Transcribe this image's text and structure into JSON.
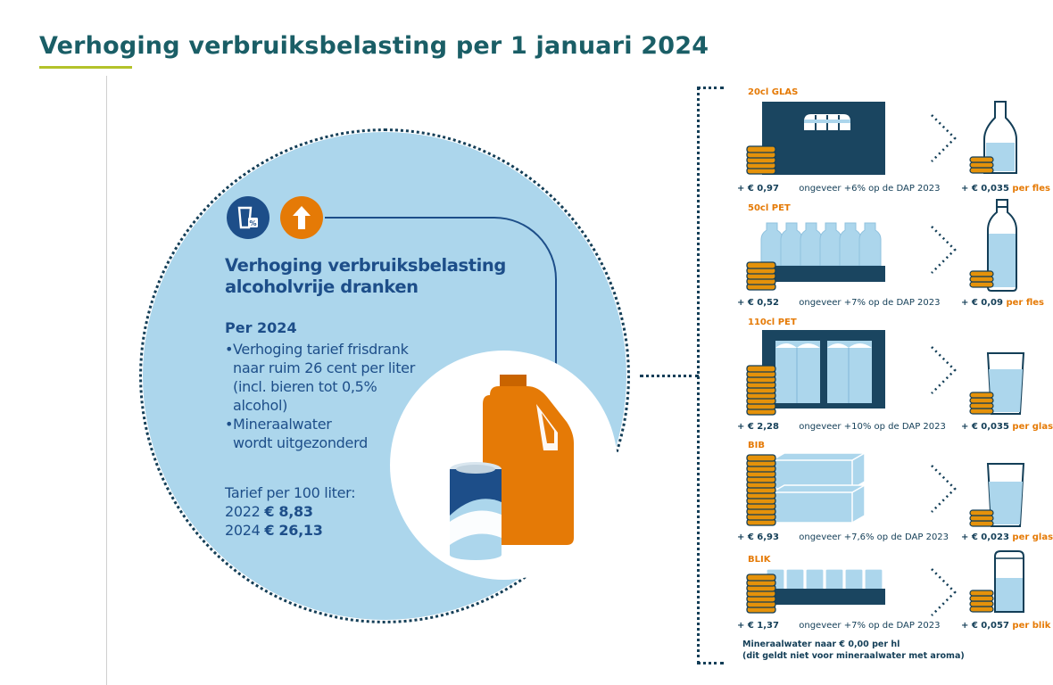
{
  "page": {
    "title": "Verhoging verbruiksbelasting per 1 januari 2024"
  },
  "colors": {
    "brand_teal": "#1a5e66",
    "accent_green": "#b3c22a",
    "navy": "#133e57",
    "blue": "#1d4e89",
    "orange": "#e57a06",
    "light_blue": "#acd6ec"
  },
  "circle": {
    "icons": [
      "glass-percent-icon",
      "arrow-up-icon"
    ],
    "heading_line1": "Verhoging verbruiksbelasting",
    "heading_line2": "alcoholvrije dranken",
    "per_label": "Per 2024",
    "bullets": [
      [
        "Verhoging tarief frisdrank",
        "naar ruim 26 cent per liter",
        "(incl. bieren tot 0,5%",
        "alcohol)"
      ],
      [
        "Mineraalwater",
        "wordt uitgezonderd"
      ]
    ],
    "tarief_label": "Tarief per 100 liter:",
    "tarief_2022_year": "2022",
    "tarief_2022_value": "€ 8,83",
    "tarief_2024_year": "2024",
    "tarief_2024_value": "€ 26,13"
  },
  "categories": [
    {
      "label": "20cl GLAS",
      "amount": "+ € 0,97",
      "note": "ongeveer +6% op de DAP 2023",
      "unit_amount": "+ € 0,035",
      "unit": "per fles"
    },
    {
      "label": "50cl PET",
      "amount": "+ € 0,52",
      "note": "ongeveer +7% op de DAP 2023",
      "unit_amount": "+ € 0,09",
      "unit": "per fles"
    },
    {
      "label": "110cl PET",
      "amount": "+ € 2,28",
      "note": "ongeveer +10% op de DAP 2023",
      "unit_amount": "+ € 0,035",
      "unit": "per glas"
    },
    {
      "label": "BIB",
      "amount": "+ € 6,93",
      "note": "ongeveer +7,6% op de DAP 2023",
      "unit_amount": "+ € 0,023",
      "unit": "per glas"
    },
    {
      "label": "BLIK",
      "amount": "+ € 1,37",
      "note": "ongeveer +7% op de DAP 2023",
      "unit_amount": "+ € 0,057",
      "unit": "per blik"
    }
  ],
  "footnote": {
    "line1": "Mineraalwater naar € 0,00 per hl",
    "line2": "(dit geldt niet voor mineraalwater met aroma)"
  }
}
